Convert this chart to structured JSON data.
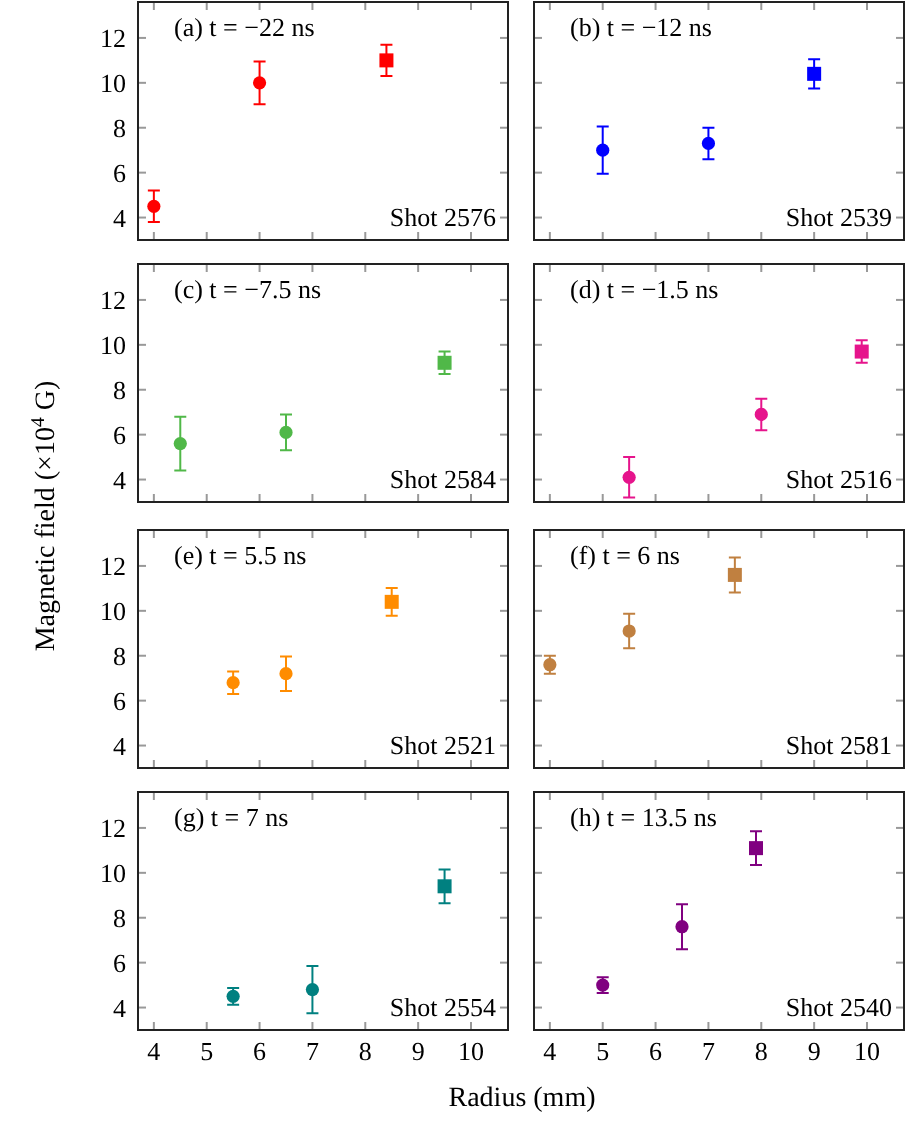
{
  "chart_data": [
    {
      "type": "scatter",
      "title": "(a) t = −22 ns",
      "annotations": [
        "Shot 2576"
      ],
      "xlim": [
        3.7,
        10.7
      ],
      "ylim": [
        3,
        13.6
      ],
      "xticks": [
        4,
        5,
        6,
        7,
        8,
        9,
        10
      ],
      "yticks": [
        4,
        6,
        8,
        10,
        12
      ],
      "tick_labels": "y",
      "series": [
        {
          "color": "#ff0000",
          "marker": "circle",
          "x": [
            4,
            6
          ],
          "values": [
            4.5,
            10.0
          ],
          "errors": [
            0.7,
            0.95
          ]
        },
        {
          "color": "#ff0000",
          "marker": "square",
          "x": [
            8.4
          ],
          "values": [
            11.0
          ],
          "errors": [
            0.7
          ]
        }
      ]
    },
    {
      "type": "scatter",
      "title": "(b) t = −12 ns",
      "annotations": [
        "Shot 2539"
      ],
      "xlim": [
        3.7,
        10.7
      ],
      "ylim": [
        3,
        13.6
      ],
      "xticks": [
        4,
        5,
        6,
        7,
        8,
        9,
        10
      ],
      "yticks": [
        4,
        6,
        8,
        10,
        12
      ],
      "tick_labels": false,
      "series": [
        {
          "color": "#0000ff",
          "marker": "circle",
          "x": [
            5,
            7
          ],
          "values": [
            7.0,
            7.3
          ],
          "errors": [
            1.05,
            0.7
          ]
        },
        {
          "color": "#0000ff",
          "marker": "square",
          "x": [
            9
          ],
          "values": [
            10.4
          ],
          "errors": [
            0.65
          ]
        }
      ]
    },
    {
      "type": "scatter",
      "title": "(c) t = −7.5 ns",
      "ylabel": "Magnetic field (×10$^{4}$ G)",
      "annotations": [
        "Shot 2584"
      ],
      "xlim": [
        3.7,
        10.7
      ],
      "ylim": [
        3,
        13.6
      ],
      "xticks": [
        4,
        5,
        6,
        7,
        8,
        9,
        10
      ],
      "yticks": [
        4,
        6,
        8,
        10,
        12
      ],
      "tick_labels": "y",
      "series": [
        {
          "color": "#50b848",
          "marker": "circle",
          "x": [
            4.5,
            6.5
          ],
          "values": [
            5.6,
            6.1
          ],
          "errors": [
            1.2,
            0.8
          ]
        },
        {
          "color": "#50b848",
          "marker": "square",
          "x": [
            9.5
          ],
          "values": [
            9.2
          ],
          "errors": [
            0.5
          ]
        }
      ]
    },
    {
      "type": "scatter",
      "title": "(d) t = −1.5 ns",
      "annotations": [
        "Shot 2516"
      ],
      "xlim": [
        3.7,
        10.7
      ],
      "ylim": [
        3,
        13.6
      ],
      "xticks": [
        4,
        5,
        6,
        7,
        8,
        9,
        10
      ],
      "yticks": [
        4,
        6,
        8,
        10,
        12
      ],
      "tick_labels": false,
      "series": [
        {
          "color": "#e6148c",
          "marker": "circle",
          "x": [
            5.5,
            8
          ],
          "values": [
            4.1,
            6.9
          ],
          "errors": [
            0.9,
            0.7
          ]
        },
        {
          "color": "#e6148c",
          "marker": "square",
          "x": [
            9.9
          ],
          "values": [
            9.7
          ],
          "errors": [
            0.5
          ]
        }
      ]
    },
    {
      "type": "scatter",
      "title": "(e) t = 5.5 ns",
      "annotations": [
        "Shot 2521"
      ],
      "xlim": [
        3.7,
        10.7
      ],
      "ylim": [
        3,
        13.6
      ],
      "xticks": [
        4,
        5,
        6,
        7,
        8,
        9,
        10
      ],
      "yticks": [
        4,
        6,
        8,
        10,
        12
      ],
      "tick_labels": "y",
      "series": [
        {
          "color": "#ff8c00",
          "marker": "circle",
          "x": [
            5.5,
            6.5
          ],
          "values": [
            6.8,
            7.2
          ],
          "errors": [
            0.5,
            0.77
          ]
        },
        {
          "color": "#ff8c00",
          "marker": "square",
          "x": [
            8.5
          ],
          "values": [
            10.4
          ],
          "errors": [
            0.62
          ]
        }
      ]
    },
    {
      "type": "scatter",
      "title": "(f) t = 6 ns",
      "annotations": [
        "Shot 2581"
      ],
      "xlim": [
        3.7,
        10.7
      ],
      "ylim": [
        3,
        13.6
      ],
      "xticks": [
        4,
        5,
        6,
        7,
        8,
        9,
        10
      ],
      "yticks": [
        4,
        6,
        8,
        10,
        12
      ],
      "tick_labels": false,
      "series": [
        {
          "color": "#c08040",
          "marker": "circle",
          "x": [
            4,
            5.5
          ],
          "values": [
            7.6,
            9.1
          ],
          "errors": [
            0.4,
            0.77
          ]
        },
        {
          "color": "#c08040",
          "marker": "square",
          "x": [
            7.5
          ],
          "values": [
            11.6
          ],
          "errors": [
            0.78
          ]
        }
      ]
    },
    {
      "type": "scatter",
      "title": "(g) t = 7 ns",
      "annotations": [
        "Shot 2554"
      ],
      "xlim": [
        3.7,
        10.7
      ],
      "ylim": [
        3,
        13.6
      ],
      "xticks": [
        4,
        5,
        6,
        7,
        8,
        9,
        10
      ],
      "yticks": [
        4,
        6,
        8,
        10,
        12
      ],
      "series": [
        {
          "color": "#008080",
          "marker": "circle",
          "x": [
            5.5,
            7
          ],
          "values": [
            4.5,
            4.8
          ],
          "errors": [
            0.37,
            1.05
          ]
        },
        {
          "color": "#008080",
          "marker": "square",
          "x": [
            9.5
          ],
          "values": [
            9.4
          ],
          "errors": [
            0.75
          ]
        }
      ]
    },
    {
      "type": "scatter",
      "title": "(h) t = 13.5 ns",
      "xlabel": "Radius (mm)",
      "annotations": [
        "Shot 2540"
      ],
      "xlim": [
        3.7,
        10.7
      ],
      "ylim": [
        3,
        13.6
      ],
      "xticks": [
        4,
        5,
        6,
        7,
        8,
        9,
        10
      ],
      "yticks": [
        4,
        6,
        8,
        10,
        12
      ],
      "tick_labels": "x",
      "series": [
        {
          "color": "#800080",
          "marker": "circle",
          "x": [
            5,
            6.5
          ],
          "values": [
            5.0,
            7.6
          ],
          "errors": [
            0.35,
            1.0
          ]
        },
        {
          "color": "#800080",
          "marker": "square",
          "x": [
            7.9
          ],
          "values": [
            11.1
          ],
          "errors": [
            0.75
          ]
        }
      ]
    }
  ]
}
